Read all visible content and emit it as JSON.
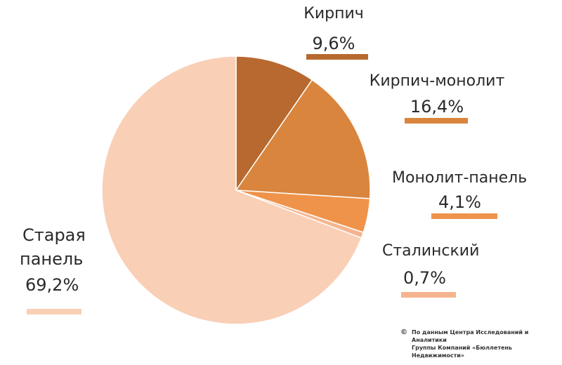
{
  "chart_data": {
    "type": "pie",
    "title": "",
    "slices": [
      {
        "label": "Кирпич",
        "value": 9.6,
        "display": "9,6%",
        "color": "#b8692f"
      },
      {
        "label": "Кирпич-монолит",
        "value": 16.4,
        "display": "16,4%",
        "color": "#d9853e"
      },
      {
        "label": "Монолит-панель",
        "value": 4.1,
        "display": "4,1%",
        "color": "#ef934a"
      },
      {
        "label": "Сталинский",
        "value": 0.7,
        "display": "0,7%",
        "color": "#f5b48f"
      },
      {
        "label": "Старая панель",
        "value": 69.2,
        "display": "69,2%",
        "color": "#f9cfb6"
      }
    ]
  },
  "labels": {
    "brick": {
      "name": "Кирпич",
      "value": "9,6%"
    },
    "brick_monolith": {
      "name": "Кирпич-монолит",
      "value": "16,4%"
    },
    "monolith_panel": {
      "name": "Монолит-панель",
      "value": "4,1%"
    },
    "stalin": {
      "name": "Сталинский",
      "value": "0,7%"
    },
    "old_panel": {
      "name_line1": "Старая",
      "name_line2": "панель",
      "value": "69,2%"
    }
  },
  "source": {
    "symbol": "©",
    "line1": "По данным Центра Исследований и Аналитики",
    "line2": "Группы Компаний «Бюллетень Недвижимости»"
  }
}
